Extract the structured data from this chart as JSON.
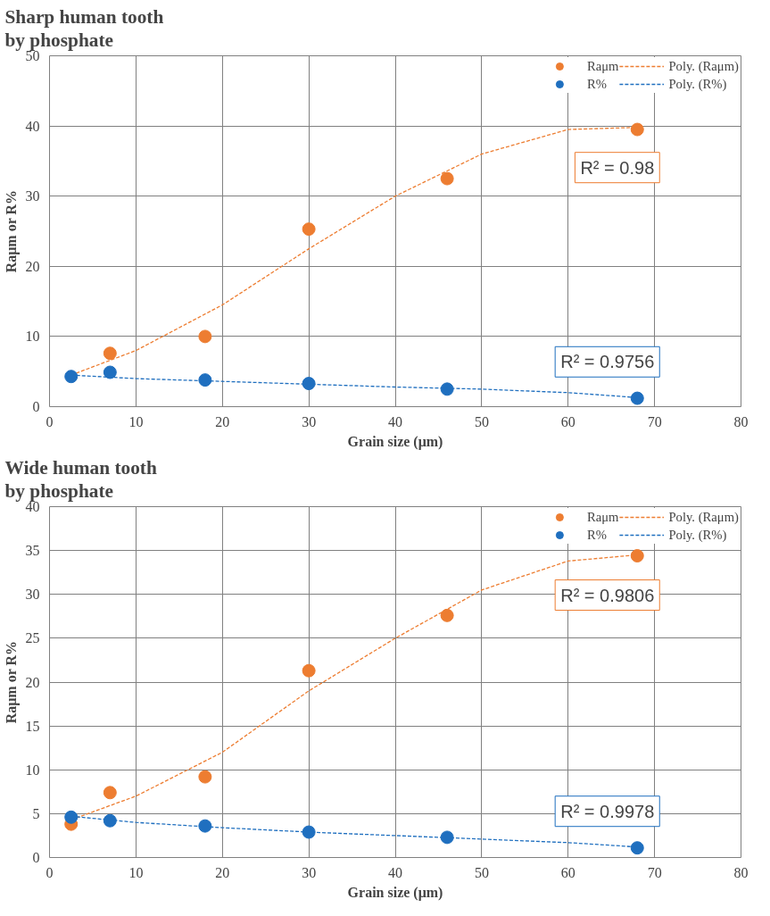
{
  "chart_data": [
    {
      "type": "scatter",
      "title": "Sharp human tooth\nby phosphate",
      "xlabel": "Grain size (μm)",
      "ylabel": "Raμm or R%",
      "x": [
        2.5,
        7,
        18,
        30,
        46,
        68
      ],
      "xlim": [
        0,
        80
      ],
      "xticks": [
        0,
        10,
        20,
        30,
        40,
        50,
        60,
        70,
        80
      ],
      "ylim": [
        0,
        50
      ],
      "yticks": [
        0,
        10,
        20,
        30,
        40,
        50
      ],
      "grid": true,
      "legend": "top right",
      "marker": "circle",
      "series": [
        {
          "name": "Raμm",
          "color": "#ed7d31",
          "values": [
            null,
            7.6,
            10,
            25.3,
            32.5,
            39.5
          ]
        },
        {
          "name": "R%",
          "color": "#1f6fbf",
          "values": [
            4.3,
            4.9,
            3.8,
            3.3,
            2.5,
            1.2
          ]
        },
        {
          "name": "Poly. (Raμm)",
          "type": "line",
          "line_style": "dashed",
          "marker": "none",
          "color": "#ed7d31",
          "x": [
            2.5,
            10,
            20,
            30,
            40,
            50,
            60,
            68
          ],
          "values": [
            4.5,
            8,
            14.5,
            22.5,
            30,
            36,
            39.5,
            39.8
          ]
        },
        {
          "name": "Poly. (R%)",
          "type": "line",
          "line_style": "dashed",
          "marker": "none",
          "color": "#1f6fbf",
          "x": [
            2.5,
            10,
            20,
            30,
            40,
            50,
            60,
            68
          ],
          "values": [
            4.5,
            4,
            3.6,
            3.2,
            2.8,
            2.5,
            2,
            1.3
          ]
        }
      ],
      "annotations": [
        "R² = 0.98",
        "R² = 0.9756"
      ]
    },
    {
      "type": "scatter",
      "title": "Wide human tooth\nby phosphate",
      "xlabel": "Grain size (μm)",
      "ylabel": "Raμm or R%",
      "x": [
        2.5,
        7,
        18,
        30,
        46,
        68
      ],
      "xlim": [
        0,
        80
      ],
      "xticks": [
        0,
        10,
        20,
        30,
        40,
        50,
        60,
        70,
        80
      ],
      "ylim": [
        0,
        40
      ],
      "yticks": [
        0,
        5,
        10,
        15,
        20,
        25,
        30,
        35,
        40
      ],
      "grid": true,
      "legend": "top right",
      "marker": "circle",
      "series": [
        {
          "name": "Raμm",
          "color": "#ed7d31",
          "values": [
            3.8,
            7.4,
            9.2,
            21.3,
            27.6,
            34.4
          ]
        },
        {
          "name": "R%",
          "color": "#1f6fbf",
          "values": [
            4.6,
            4.2,
            3.6,
            2.9,
            2.3,
            1.1
          ]
        },
        {
          "name": "Poly. (Raμm)",
          "type": "line",
          "line_style": "dashed",
          "marker": "none",
          "color": "#ed7d31",
          "x": [
            2.5,
            10,
            20,
            30,
            40,
            50,
            60,
            68
          ],
          "values": [
            4.3,
            7,
            12,
            19,
            25,
            30.5,
            33.8,
            34.5
          ]
        },
        {
          "name": "Poly. (R%)",
          "type": "line",
          "line_style": "dashed",
          "marker": "none",
          "color": "#1f6fbf",
          "x": [
            2.5,
            10,
            20,
            30,
            40,
            50,
            60,
            68
          ],
          "values": [
            4.7,
            4,
            3.4,
            2.9,
            2.5,
            2.1,
            1.7,
            1.2
          ]
        }
      ],
      "annotations": [
        "R² = 0.9806",
        "R² = 0.9978"
      ]
    }
  ]
}
